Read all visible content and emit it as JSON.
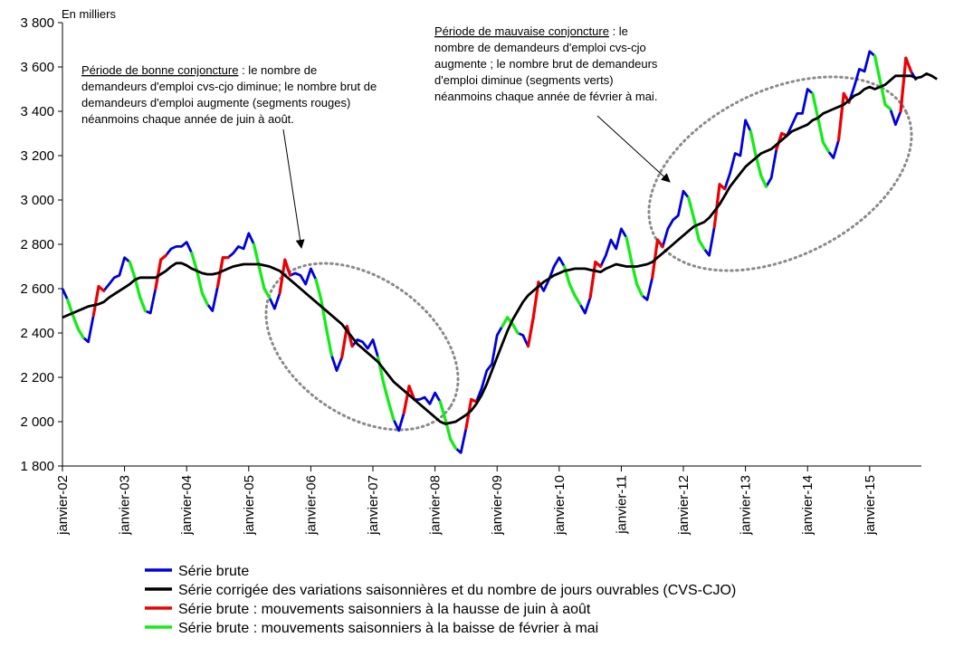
{
  "chart_data": {
    "type": "line",
    "unit_label": "En milliers",
    "ylim": [
      1800,
      3800
    ],
    "y_ticks": [
      1800,
      2000,
      2200,
      2400,
      2600,
      2800,
      3000,
      3200,
      3400,
      3600,
      3800
    ],
    "y_tick_labels": [
      "1 800",
      "2 000",
      "2 200",
      "2 400",
      "2 600",
      "2 800",
      "3 000",
      "3 200",
      "3 400",
      "3 600",
      "3 800"
    ],
    "x_ticks": [
      "janvier-02",
      "janvier-03",
      "janvier-04",
      "janvier-05",
      "janvier-06",
      "janvier-07",
      "janvier-08",
      "janvier-09",
      "janvier-10",
      "janvier-11",
      "janvier-12",
      "janvier-13",
      "janvier-14",
      "janvier-15"
    ],
    "x_start": "2002-01",
    "grid": false,
    "series": [
      {
        "name": "Série brute",
        "color": "#0000dd",
        "values": [
          2600,
          2550,
          2480,
          2420,
          2380,
          2360,
          2480,
          2610,
          2590,
          2620,
          2650,
          2660,
          2740,
          2720,
          2650,
          2560,
          2500,
          2490,
          2600,
          2730,
          2750,
          2780,
          2790,
          2790,
          2810,
          2760,
          2680,
          2580,
          2530,
          2500,
          2610,
          2740,
          2740,
          2760,
          2790,
          2780,
          2850,
          2800,
          2700,
          2600,
          2560,
          2510,
          2580,
          2730,
          2660,
          2670,
          2660,
          2620,
          2690,
          2640,
          2550,
          2420,
          2300,
          2230,
          2290,
          2430,
          2340,
          2370,
          2360,
          2330,
          2370,
          2290,
          2180,
          2090,
          2010,
          1960,
          2040,
          2160,
          2100,
          2100,
          2110,
          2080,
          2130,
          2090,
          2010,
          1920,
          1880,
          1860,
          1970,
          2100,
          2090,
          2150,
          2230,
          2260,
          2390,
          2430,
          2470,
          2440,
          2400,
          2390,
          2340,
          2470,
          2630,
          2590,
          2640,
          2700,
          2740,
          2700,
          2620,
          2570,
          2530,
          2490,
          2560,
          2720,
          2700,
          2750,
          2820,
          2780,
          2870,
          2830,
          2720,
          2620,
          2570,
          2550,
          2650,
          2820,
          2790,
          2870,
          2910,
          2930,
          3040,
          3010,
          2920,
          2820,
          2780,
          2750,
          2880,
          3070,
          3050,
          3120,
          3210,
          3200,
          3360,
          3310,
          3200,
          3110,
          3060,
          3100,
          3230,
          3300,
          3290,
          3340,
          3390,
          3390,
          3500,
          3480,
          3370,
          3260,
          3220,
          3190,
          3270,
          3480,
          3440,
          3510,
          3590,
          3580,
          3670,
          3650,
          3540,
          3430,
          3410,
          3340,
          3400,
          3640,
          3580,
          3540
        ]
      },
      {
        "name": "Série corrigée des variations saisonnières et du nombre de jours ouvrables (CVS-CJO)",
        "color": "#000000",
        "values": [
          2470,
          2480,
          2490,
          2500,
          2510,
          2520,
          2525,
          2530,
          2540,
          2560,
          2575,
          2590,
          2605,
          2620,
          2640,
          2650,
          2650,
          2650,
          2650,
          2665,
          2680,
          2700,
          2715,
          2715,
          2705,
          2690,
          2680,
          2670,
          2665,
          2665,
          2670,
          2680,
          2690,
          2700,
          2705,
          2710,
          2710,
          2710,
          2710,
          2705,
          2700,
          2690,
          2680,
          2660,
          2640,
          2620,
          2600,
          2580,
          2560,
          2540,
          2520,
          2500,
          2480,
          2460,
          2440,
          2410,
          2380,
          2350,
          2330,
          2310,
          2290,
          2270,
          2240,
          2210,
          2180,
          2160,
          2140,
          2120,
          2100,
          2080,
          2060,
          2040,
          2020,
          2000,
          1990,
          1995,
          2000,
          2015,
          2030,
          2050,
          2080,
          2120,
          2170,
          2230,
          2290,
          2350,
          2410,
          2460,
          2500,
          2540,
          2570,
          2590,
          2610,
          2630,
          2645,
          2660,
          2670,
          2680,
          2685,
          2690,
          2690,
          2690,
          2685,
          2680,
          2675,
          2690,
          2700,
          2710,
          2705,
          2700,
          2700,
          2700,
          2705,
          2710,
          2720,
          2740,
          2760,
          2780,
          2800,
          2820,
          2840,
          2860,
          2880,
          2890,
          2900,
          2920,
          2950,
          2980,
          3020,
          3060,
          3090,
          3120,
          3150,
          3170,
          3190,
          3210,
          3220,
          3230,
          3250,
          3270,
          3290,
          3310,
          3320,
          3330,
          3340,
          3360,
          3370,
          3390,
          3400,
          3410,
          3420,
          3430,
          3450,
          3470,
          3480,
          3500,
          3510,
          3500,
          3510,
          3520,
          3540,
          3560,
          3560,
          3560,
          3560,
          3550,
          3555,
          3570,
          3560,
          3545
        ]
      }
    ],
    "highlights": [
      {
        "name": "Série brute : mouvements saisonniers à la hausse de juin à août",
        "color": "#ee0000",
        "months": [
          6,
          7
        ]
      },
      {
        "name": "Série brute : mouvements saisonniers à la baisse de février à mai",
        "color": "#11ee11",
        "months": [
          1,
          2,
          3
        ]
      }
    ]
  },
  "annotations": {
    "good": {
      "title": "Période de bonne conjoncture",
      "line1_rest": " : le nombre de",
      "line2": "demandeurs d'emploi cvs-cjo diminue; le nombre brut de",
      "line3": "demandeurs d'emploi augmente (segments rouges)",
      "line4": "néanmoins chaque année de juin à août."
    },
    "bad": {
      "title": "Période de mauvaise conjoncture",
      "line1_rest": " : le",
      "line2": "nombre de demandeurs d'emploi cvs-cjo",
      "line3": "augmente ; le nombre brut de demandeurs",
      "line4": "d'emploi diminue (segments verts)",
      "line5": "néanmoins chaque année de février à mai."
    }
  },
  "legend": [
    {
      "label": "Série brute",
      "color": "#0000dd"
    },
    {
      "label": "Série corrigée des variations saisonnières et du nombre de jours ouvrables (CVS-CJO)",
      "color": "#000000"
    },
    {
      "label": "Série brute : mouvements saisonniers à la hausse de juin à août",
      "color": "#ee0000"
    },
    {
      "label": "Série brute : mouvements saisonniers à la baisse de février à mai",
      "color": "#11ee11"
    }
  ]
}
